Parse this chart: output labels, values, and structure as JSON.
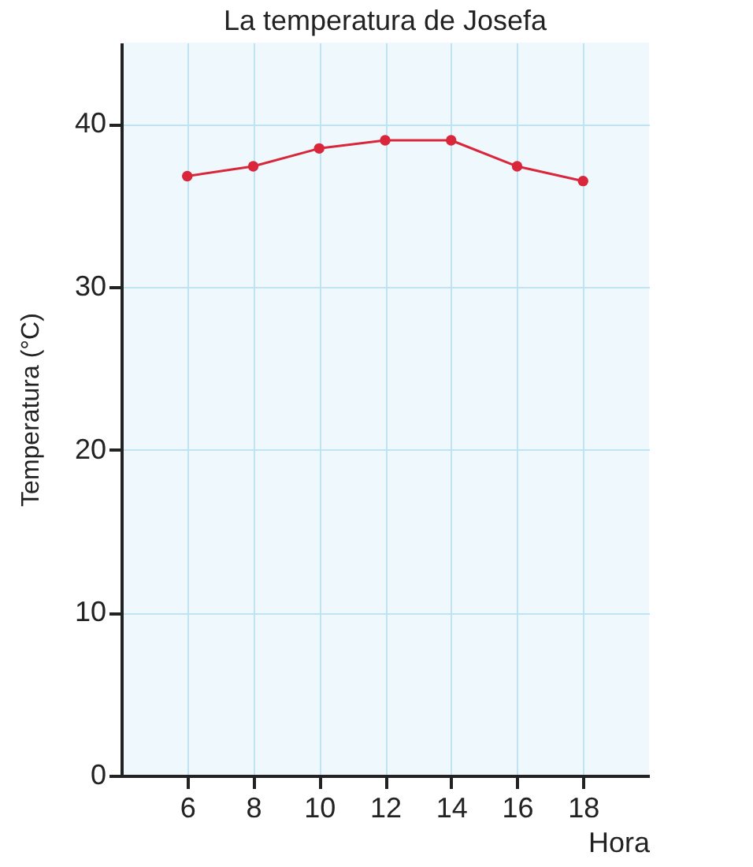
{
  "chart_data": {
    "type": "line",
    "title": "La temperatura de Josefa",
    "xlabel": "Hora",
    "ylabel": "Temperatura (°C)",
    "x": [
      6,
      8,
      10,
      12,
      14,
      16,
      18
    ],
    "series": [
      {
        "color": "#d9263a",
        "values": [
          36.8,
          37.4,
          38.5,
          39,
          39,
          37.4,
          36.5
        ]
      }
    ],
    "xlim": [
      4,
      20
    ],
    "xticks": [
      6,
      8,
      10,
      12,
      14,
      16,
      18
    ],
    "ylim": [
      0,
      45
    ],
    "yticks": [
      0,
      10,
      20,
      30,
      40
    ],
    "grid": true,
    "marker": "circle",
    "line_style": "solid"
  }
}
